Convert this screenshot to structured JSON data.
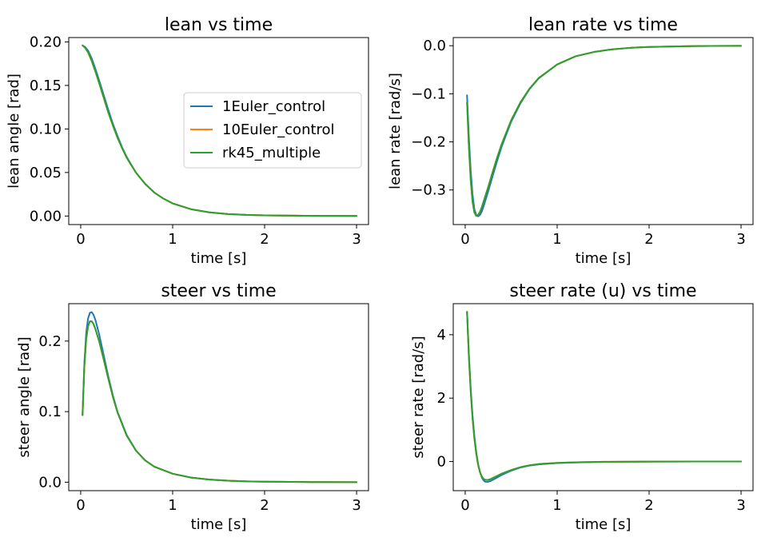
{
  "colors": {
    "1Euler_control": "#1f77b4",
    "10Euler_control": "#ff7f0e",
    "rk45_multiple": "#2ca02c"
  },
  "chart_data": [
    {
      "type": "line",
      "title": "lean vs time",
      "xlabel": "time [s]",
      "ylabel": "lean angle [rad]",
      "xlim": [
        -0.13,
        3.13
      ],
      "ylim": [
        -0.0098,
        0.205
      ],
      "xticks": [
        0,
        1,
        2,
        3
      ],
      "xtick_labels": [
        "0",
        "1",
        "2",
        "3"
      ],
      "yticks": [
        0,
        0.05,
        0.1,
        0.15,
        0.2
      ],
      "ytick_labels": [
        "0.00",
        "0.05",
        "0.10",
        "0.15",
        "0.20"
      ],
      "grid": false,
      "legend": {
        "placement": "center-right",
        "entries": [
          "1Euler_control",
          "10Euler_control",
          "rk45_multiple"
        ]
      },
      "series": [
        {
          "name": "1Euler_control",
          "x": [
            0.02,
            0.05,
            0.08,
            0.12,
            0.16,
            0.2,
            0.25,
            0.3,
            0.35,
            0.4,
            0.45,
            0.5,
            0.6,
            0.7,
            0.8,
            0.9,
            1.0,
            1.2,
            1.4,
            1.6,
            1.8,
            2.0,
            2.5,
            3.0
          ],
          "y": [
            0.196,
            0.194,
            0.19,
            0.181,
            0.169,
            0.156,
            0.139,
            0.122,
            0.106,
            0.092,
            0.079,
            0.068,
            0.05,
            0.037,
            0.027,
            0.02,
            0.0145,
            0.0078,
            0.0042,
            0.0023,
            0.0013,
            0.0008,
            0.0002,
            0.0001
          ]
        },
        {
          "name": "10Euler_control",
          "x": [
            0.02,
            0.05,
            0.08,
            0.12,
            0.16,
            0.2,
            0.25,
            0.3,
            0.35,
            0.4,
            0.45,
            0.5,
            0.6,
            0.7,
            0.8,
            0.9,
            1.0,
            1.2,
            1.4,
            1.6,
            1.8,
            2.0,
            2.5,
            3.0
          ],
          "y": [
            0.196,
            0.193,
            0.188,
            0.178,
            0.166,
            0.153,
            0.136,
            0.119,
            0.104,
            0.09,
            0.078,
            0.067,
            0.05,
            0.037,
            0.027,
            0.02,
            0.0145,
            0.0078,
            0.0042,
            0.0023,
            0.0013,
            0.0008,
            0.0002,
            0.0001
          ]
        },
        {
          "name": "rk45_multiple",
          "x": [
            0.02,
            0.05,
            0.08,
            0.12,
            0.16,
            0.2,
            0.25,
            0.3,
            0.35,
            0.4,
            0.45,
            0.5,
            0.6,
            0.7,
            0.8,
            0.9,
            1.0,
            1.2,
            1.4,
            1.6,
            1.8,
            2.0,
            2.5,
            3.0
          ],
          "y": [
            0.196,
            0.193,
            0.188,
            0.178,
            0.166,
            0.153,
            0.136,
            0.119,
            0.104,
            0.09,
            0.078,
            0.067,
            0.05,
            0.037,
            0.027,
            0.02,
            0.0145,
            0.0078,
            0.0042,
            0.0023,
            0.0013,
            0.0008,
            0.0002,
            0.0001
          ]
        }
      ]
    },
    {
      "type": "line",
      "title": "lean rate vs time",
      "xlabel": "time [s]",
      "ylabel": "lean rate [rad/s]",
      "xlim": [
        -0.13,
        3.13
      ],
      "ylim": [
        -0.372,
        0.017
      ],
      "xticks": [
        0,
        1,
        2,
        3
      ],
      "xtick_labels": [
        "0",
        "1",
        "2",
        "3"
      ],
      "yticks": [
        -0.3,
        -0.2,
        -0.1,
        0.0
      ],
      "ytick_labels": [
        "−0.3",
        "−0.2",
        "−0.1",
        "0.0"
      ],
      "grid": false,
      "series": [
        {
          "name": "1Euler_control",
          "x": [
            0.02,
            0.04,
            0.06,
            0.08,
            0.1,
            0.12,
            0.14,
            0.16,
            0.18,
            0.2,
            0.25,
            0.3,
            0.35,
            0.4,
            0.5,
            0.6,
            0.7,
            0.8,
            1.0,
            1.2,
            1.4,
            1.6,
            1.8,
            2.0,
            2.5,
            3.0
          ],
          "y": [
            -0.103,
            -0.19,
            -0.26,
            -0.31,
            -0.34,
            -0.352,
            -0.355,
            -0.352,
            -0.345,
            -0.334,
            -0.303,
            -0.27,
            -0.238,
            -0.208,
            -0.158,
            -0.12,
            -0.09,
            -0.068,
            -0.039,
            -0.022,
            -0.013,
            -0.0075,
            -0.0043,
            -0.0025,
            -0.0007,
            -0.0002
          ]
        },
        {
          "name": "10Euler_control",
          "x": [
            0.02,
            0.04,
            0.06,
            0.08,
            0.1,
            0.12,
            0.14,
            0.16,
            0.18,
            0.2,
            0.25,
            0.3,
            0.35,
            0.4,
            0.5,
            0.6,
            0.7,
            0.8,
            1.0,
            1.2,
            1.4,
            1.6,
            1.8,
            2.0,
            2.5,
            3.0
          ],
          "y": [
            -0.118,
            -0.21,
            -0.28,
            -0.325,
            -0.347,
            -0.354,
            -0.352,
            -0.346,
            -0.336,
            -0.324,
            -0.294,
            -0.262,
            -0.231,
            -0.203,
            -0.155,
            -0.118,
            -0.089,
            -0.067,
            -0.039,
            -0.022,
            -0.013,
            -0.0075,
            -0.0043,
            -0.0025,
            -0.0007,
            -0.0002
          ]
        },
        {
          "name": "rk45_multiple",
          "x": [
            0.02,
            0.04,
            0.06,
            0.08,
            0.1,
            0.12,
            0.14,
            0.16,
            0.18,
            0.2,
            0.25,
            0.3,
            0.35,
            0.4,
            0.5,
            0.6,
            0.7,
            0.8,
            1.0,
            1.2,
            1.4,
            1.6,
            1.8,
            2.0,
            2.5,
            3.0
          ],
          "y": [
            -0.118,
            -0.21,
            -0.28,
            -0.325,
            -0.347,
            -0.354,
            -0.352,
            -0.346,
            -0.336,
            -0.324,
            -0.294,
            -0.262,
            -0.231,
            -0.203,
            -0.155,
            -0.118,
            -0.089,
            -0.067,
            -0.039,
            -0.022,
            -0.013,
            -0.0075,
            -0.0043,
            -0.0025,
            -0.0007,
            -0.0002
          ]
        }
      ]
    },
    {
      "type": "line",
      "title": "steer vs time",
      "xlabel": "time [s]",
      "ylabel": "steer angle [rad]",
      "xlim": [
        -0.13,
        3.13
      ],
      "ylim": [
        -0.012,
        0.253
      ],
      "xticks": [
        0,
        1,
        2,
        3
      ],
      "xtick_labels": [
        "0",
        "1",
        "2",
        "3"
      ],
      "yticks": [
        0.0,
        0.1,
        0.2
      ],
      "ytick_labels": [
        "0.0",
        "0.1",
        "0.2"
      ],
      "grid": false,
      "series": [
        {
          "name": "1Euler_control",
          "x": [
            0.02,
            0.04,
            0.06,
            0.08,
            0.1,
            0.12,
            0.14,
            0.16,
            0.2,
            0.25,
            0.3,
            0.35,
            0.4,
            0.5,
            0.6,
            0.7,
            0.8,
            1.0,
            1.2,
            1.4,
            1.6,
            1.8,
            2.0,
            2.5,
            3.0
          ],
          "y": [
            0.095,
            0.17,
            0.212,
            0.232,
            0.24,
            0.241,
            0.237,
            0.23,
            0.21,
            0.18,
            0.15,
            0.123,
            0.1,
            0.067,
            0.045,
            0.031,
            0.022,
            0.012,
            0.0065,
            0.0037,
            0.0021,
            0.0012,
            0.0007,
            0.0002,
            0.0001
          ]
        },
        {
          "name": "10Euler_control",
          "x": [
            0.02,
            0.04,
            0.06,
            0.08,
            0.1,
            0.12,
            0.14,
            0.16,
            0.2,
            0.25,
            0.3,
            0.35,
            0.4,
            0.5,
            0.6,
            0.7,
            0.8,
            1.0,
            1.2,
            1.4,
            1.6,
            1.8,
            2.0,
            2.5,
            3.0
          ],
          "y": [
            0.095,
            0.165,
            0.203,
            0.221,
            0.228,
            0.228,
            0.224,
            0.217,
            0.2,
            0.174,
            0.147,
            0.121,
            0.099,
            0.066,
            0.045,
            0.031,
            0.022,
            0.012,
            0.0065,
            0.0037,
            0.0021,
            0.0012,
            0.0007,
            0.0002,
            0.0001
          ]
        },
        {
          "name": "rk45_multiple",
          "x": [
            0.02,
            0.04,
            0.06,
            0.08,
            0.1,
            0.12,
            0.14,
            0.16,
            0.2,
            0.25,
            0.3,
            0.35,
            0.4,
            0.5,
            0.6,
            0.7,
            0.8,
            1.0,
            1.2,
            1.4,
            1.6,
            1.8,
            2.0,
            2.5,
            3.0
          ],
          "y": [
            0.095,
            0.165,
            0.203,
            0.221,
            0.228,
            0.228,
            0.224,
            0.217,
            0.2,
            0.174,
            0.147,
            0.121,
            0.099,
            0.066,
            0.045,
            0.031,
            0.022,
            0.012,
            0.0065,
            0.0037,
            0.0021,
            0.0012,
            0.0007,
            0.0002,
            0.0001
          ]
        }
      ]
    },
    {
      "type": "line",
      "title": "steer rate (u) vs time",
      "xlabel": "time [s]",
      "ylabel": "steer rate [rad/s]",
      "xlim": [
        -0.13,
        3.13
      ],
      "ylim": [
        -0.92,
        4.98
      ],
      "xticks": [
        0,
        1,
        2,
        3
      ],
      "xtick_labels": [
        "0",
        "1",
        "2",
        "3"
      ],
      "yticks": [
        0,
        2,
        4
      ],
      "ytick_labels": [
        "0",
        "2",
        "4"
      ],
      "grid": false,
      "series": [
        {
          "name": "1Euler_control",
          "x": [
            0.02,
            0.04,
            0.06,
            0.08,
            0.1,
            0.12,
            0.14,
            0.16,
            0.18,
            0.2,
            0.22,
            0.25,
            0.28,
            0.3,
            0.35,
            0.4,
            0.5,
            0.6,
            0.7,
            0.8,
            1.0,
            1.2,
            1.5,
            2.0,
            2.5,
            3.0
          ],
          "y": [
            4.72,
            3.4,
            2.3,
            1.45,
            0.8,
            0.3,
            -0.07,
            -0.33,
            -0.5,
            -0.6,
            -0.64,
            -0.64,
            -0.61,
            -0.58,
            -0.5,
            -0.42,
            -0.29,
            -0.19,
            -0.13,
            -0.09,
            -0.05,
            -0.03,
            -0.012,
            -0.004,
            -0.001,
            0.0
          ]
        },
        {
          "name": "10Euler_control",
          "x": [
            0.02,
            0.04,
            0.06,
            0.08,
            0.1,
            0.12,
            0.14,
            0.16,
            0.18,
            0.2,
            0.22,
            0.25,
            0.28,
            0.3,
            0.35,
            0.4,
            0.5,
            0.6,
            0.7,
            0.8,
            1.0,
            1.2,
            1.5,
            2.0,
            2.5,
            3.0
          ],
          "y": [
            4.72,
            3.3,
            2.2,
            1.35,
            0.72,
            0.25,
            -0.1,
            -0.33,
            -0.47,
            -0.55,
            -0.58,
            -0.58,
            -0.55,
            -0.52,
            -0.45,
            -0.38,
            -0.27,
            -0.18,
            -0.12,
            -0.08,
            -0.045,
            -0.025,
            -0.01,
            -0.004,
            -0.001,
            0.0
          ]
        },
        {
          "name": "rk45_multiple",
          "x": [
            0.02,
            0.04,
            0.06,
            0.08,
            0.1,
            0.12,
            0.14,
            0.16,
            0.18,
            0.2,
            0.22,
            0.25,
            0.28,
            0.3,
            0.35,
            0.4,
            0.5,
            0.6,
            0.7,
            0.8,
            1.0,
            1.2,
            1.5,
            2.0,
            2.5,
            3.0
          ],
          "y": [
            4.72,
            3.3,
            2.2,
            1.35,
            0.72,
            0.25,
            -0.1,
            -0.33,
            -0.47,
            -0.55,
            -0.58,
            -0.58,
            -0.55,
            -0.52,
            -0.45,
            -0.38,
            -0.27,
            -0.18,
            -0.12,
            -0.08,
            -0.045,
            -0.025,
            -0.01,
            -0.004,
            -0.001,
            0.0
          ]
        }
      ]
    }
  ]
}
